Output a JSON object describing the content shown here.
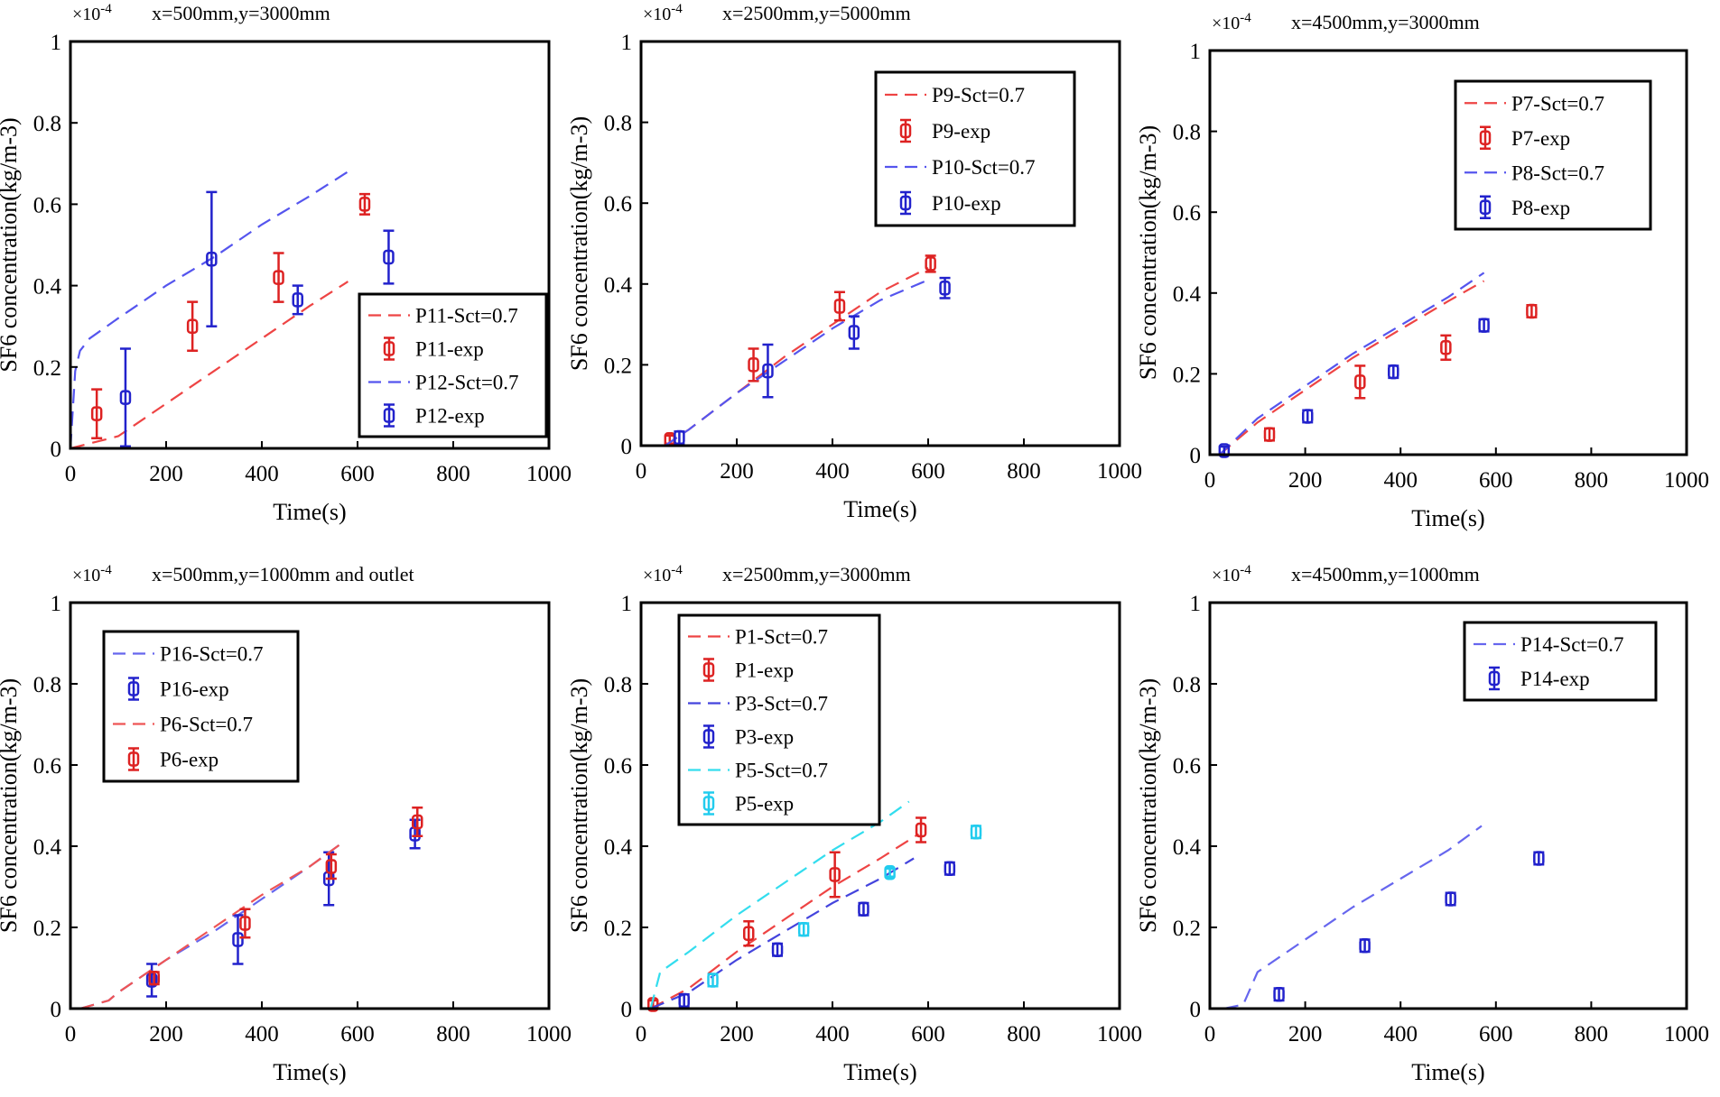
{
  "chart_data": [
    {
      "type": "line",
      "title": "x=500mm,y=3000mm",
      "scale_label": "×10-4",
      "xlabel": "Time(s)",
      "ylabel": "SF6 concentration(kg/m-3)",
      "xlim": [
        0,
        1000
      ],
      "ylim": [
        0,
        1
      ],
      "xticks": [
        "0",
        "200",
        "400",
        "600",
        "800",
        "1000"
      ],
      "yticks": [
        "0",
        "0.2",
        "0.4",
        "0.6",
        "0.8",
        "1"
      ],
      "legend_position": "bottom-right",
      "series": [
        {
          "name": "P11-Sct=0.7",
          "kind": "line",
          "color": "#ee4444",
          "x": [
            0,
            100,
            200,
            300,
            400,
            500,
            580
          ],
          "y": [
            0,
            0.03,
            0.11,
            0.19,
            0.27,
            0.35,
            0.41
          ]
        },
        {
          "name": "P11-exp",
          "kind": "point",
          "color": "#dd2222",
          "x": [
            55,
            255,
            435,
            615
          ],
          "y": [
            0.085,
            0.3,
            0.42,
            0.6
          ],
          "err": [
            0.06,
            0.06,
            0.06,
            0.025
          ]
        },
        {
          "name": "P12-Sct=0.7",
          "kind": "line",
          "color": "#5555ee",
          "x": [
            0,
            10,
            20,
            40,
            100,
            200,
            300,
            400,
            500,
            580
          ],
          "y": [
            0,
            0.19,
            0.24,
            0.27,
            0.32,
            0.4,
            0.47,
            0.55,
            0.62,
            0.68
          ]
        },
        {
          "name": "P12-exp",
          "kind": "point",
          "color": "#2222cc",
          "x": [
            115,
            295,
            475,
            665
          ],
          "y": [
            0.125,
            0.465,
            0.365,
            0.47
          ],
          "err": [
            0.12,
            0.165,
            0.035,
            0.065
          ]
        }
      ]
    },
    {
      "type": "line",
      "title": "x=2500mm,y=5000mm",
      "scale_label": "×10-4",
      "xlabel": "Time(s)",
      "ylabel": "SF6 concentration(kg/m-3)",
      "xlim": [
        0,
        1000
      ],
      "ylim": [
        0,
        1
      ],
      "xticks": [
        "0",
        "200",
        "400",
        "600",
        "800",
        "1000"
      ],
      "yticks": [
        "0",
        "0.2",
        "0.4",
        "0.6",
        "0.8",
        "1"
      ],
      "legend_position": "top-right",
      "series": [
        {
          "name": "P9-Sct=0.7",
          "kind": "line",
          "color": "#ee4444",
          "x": [
            50,
            100,
            200,
            300,
            400,
            500,
            600
          ],
          "y": [
            0,
            0.04,
            0.13,
            0.22,
            0.3,
            0.38,
            0.44
          ]
        },
        {
          "name": "P9-exp",
          "kind": "point",
          "color": "#dd2222",
          "x": [
            60,
            235,
            415,
            605
          ],
          "y": [
            0.015,
            0.2,
            0.345,
            0.45
          ],
          "err": [
            0.01,
            0.04,
            0.035,
            0.02
          ]
        },
        {
          "name": "P10-Sct=0.7",
          "kind": "line",
          "color": "#5555ee",
          "x": [
            50,
            100,
            200,
            300,
            400,
            500,
            600
          ],
          "y": [
            0,
            0.04,
            0.13,
            0.21,
            0.29,
            0.36,
            0.41
          ]
        },
        {
          "name": "P10-exp",
          "kind": "point",
          "color": "#2222cc",
          "x": [
            80,
            265,
            445,
            635
          ],
          "y": [
            0.02,
            0.185,
            0.28,
            0.39
          ],
          "err": [
            0.015,
            0.065,
            0.04,
            0.025
          ]
        }
      ]
    },
    {
      "type": "line",
      "title": "x=4500mm,y=3000mm",
      "scale_label": "×10-4",
      "xlabel": "Time(s)",
      "ylabel": "SF6 concentration(kg/m-3)",
      "xlim": [
        0,
        1000
      ],
      "ylim": [
        0,
        1
      ],
      "xticks": [
        "0",
        "200",
        "400",
        "600",
        "800",
        "1000"
      ],
      "yticks": [
        "0",
        "0.2",
        "0.4",
        "0.6",
        "0.8",
        "1"
      ],
      "legend_position": "top-right",
      "series": [
        {
          "name": "P7-Sct=0.7",
          "kind": "line",
          "color": "#ee4444",
          "x": [
            20,
            100,
            200,
            300,
            400,
            500,
            575
          ],
          "y": [
            0,
            0.08,
            0.16,
            0.24,
            0.31,
            0.38,
            0.43
          ]
        },
        {
          "name": "P7-exp",
          "kind": "point",
          "color": "#dd2222",
          "x": [
            125,
            315,
            495,
            675
          ],
          "y": [
            0.05,
            0.18,
            0.265,
            0.355
          ],
          "err": [
            0.015,
            0.04,
            0.03,
            0.015
          ]
        },
        {
          "name": "P8-Sct=0.7",
          "kind": "line",
          "color": "#5555ee",
          "x": [
            20,
            100,
            200,
            300,
            400,
            500,
            575
          ],
          "y": [
            0,
            0.09,
            0.17,
            0.25,
            0.32,
            0.39,
            0.45
          ]
        },
        {
          "name": "P8-exp",
          "kind": "point",
          "color": "#2222cc",
          "x": [
            30,
            205,
            385,
            575
          ],
          "y": [
            0.01,
            0.095,
            0.205,
            0.32
          ],
          "err": [
            0.01,
            0.015,
            0.015,
            0.015
          ]
        }
      ]
    },
    {
      "type": "line",
      "title": "x=500mm,y=1000mm and outlet",
      "scale_label": "×10-4",
      "xlabel": "Time(s)",
      "ylabel": "SF6 concentration(kg/m-3)",
      "xlim": [
        0,
        1000
      ],
      "ylim": [
        0,
        1
      ],
      "xticks": [
        "0",
        "200",
        "400",
        "600",
        "800",
        "1000"
      ],
      "yticks": [
        "0",
        "0.2",
        "0.4",
        "0.6",
        "0.8",
        "1"
      ],
      "legend_position": "top-left",
      "series": [
        {
          "name": "P16-Sct=0.7",
          "kind": "line",
          "color": "#6666ee",
          "x": [
            20,
            80,
            100,
            200,
            300,
            400,
            500,
            570
          ],
          "y": [
            0,
            0.02,
            0.04,
            0.12,
            0.19,
            0.27,
            0.35,
            0.41
          ]
        },
        {
          "name": "P16-exp",
          "kind": "point",
          "color": "#2222cc",
          "x": [
            170,
            350,
            540,
            720
          ],
          "y": [
            0.07,
            0.17,
            0.32,
            0.43
          ],
          "err": [
            0.04,
            0.06,
            0.065,
            0.035
          ]
        },
        {
          "name": "P6-Sct=0.7",
          "kind": "line",
          "color": "#ee5555",
          "x": [
            20,
            80,
            100,
            200,
            300,
            400,
            500,
            570
          ],
          "y": [
            0,
            0.02,
            0.04,
            0.12,
            0.2,
            0.28,
            0.35,
            0.41
          ]
        },
        {
          "name": "P6-exp",
          "kind": "point",
          "color": "#dd2222",
          "x": [
            175,
            365,
            545,
            725
          ],
          "y": [
            0.075,
            0.21,
            0.35,
            0.46
          ],
          "err": [
            0.015,
            0.035,
            0.03,
            0.035
          ]
        }
      ]
    },
    {
      "type": "line",
      "title": "x=2500mm,y=3000mm",
      "scale_label": "×10-4",
      "xlabel": "Time(s)",
      "ylabel": "SF6 concentration(kg/m-3)",
      "xlim": [
        0,
        1000
      ],
      "ylim": [
        0,
        1
      ],
      "xticks": [
        "0",
        "200",
        "400",
        "600",
        "800",
        "1000"
      ],
      "yticks": [
        "0",
        "0.2",
        "0.4",
        "0.6",
        "0.8",
        "1"
      ],
      "legend_position": "top-left",
      "series": [
        {
          "name": "P1-Sct=0.7",
          "kind": "line",
          "color": "#ee4444",
          "x": [
            20,
            100,
            200,
            300,
            400,
            500,
            580
          ],
          "y": [
            0,
            0.05,
            0.14,
            0.22,
            0.3,
            0.37,
            0.43
          ]
        },
        {
          "name": "P1-exp",
          "kind": "point",
          "color": "#dd2222",
          "x": [
            25,
            225,
            405,
            585
          ],
          "y": [
            0.01,
            0.185,
            0.33,
            0.44
          ],
          "err": [
            0.01,
            0.03,
            0.055,
            0.03
          ]
        },
        {
          "name": "P3-Sct=0.7",
          "kind": "line",
          "color": "#4444dd",
          "x": [
            20,
            100,
            200,
            300,
            400,
            500,
            570
          ],
          "y": [
            0,
            0.04,
            0.12,
            0.19,
            0.26,
            0.32,
            0.37
          ]
        },
        {
          "name": "P3-exp",
          "kind": "point",
          "color": "#2222cc",
          "x": [
            90,
            285,
            465,
            645
          ],
          "y": [
            0.02,
            0.145,
            0.245,
            0.345
          ],
          "err": [
            0.015,
            0.015,
            0.015,
            0.015
          ]
        },
        {
          "name": "P5-Sct=0.7",
          "kind": "line",
          "color": "#33ddee",
          "x": [
            20,
            40,
            100,
            200,
            300,
            400,
            500,
            560
          ],
          "y": [
            0,
            0.09,
            0.14,
            0.23,
            0.31,
            0.39,
            0.46,
            0.51
          ]
        },
        {
          "name": "P5-exp",
          "kind": "point",
          "color": "#22ccee",
          "x": [
            150,
            340,
            520,
            700
          ],
          "y": [
            0.07,
            0.195,
            0.335,
            0.435
          ],
          "err": [
            0.015,
            0.015,
            0.01,
            0.015
          ]
        }
      ]
    },
    {
      "type": "line",
      "title": "x=4500mm,y=1000mm",
      "scale_label": "×10-4",
      "xlabel": "Time(s)",
      "ylabel": "SF6 concentration(kg/m-3)",
      "xlim": [
        0,
        1000
      ],
      "ylim": [
        0,
        1
      ],
      "xticks": [
        "0",
        "200",
        "400",
        "600",
        "800",
        "1000"
      ],
      "yticks": [
        "0",
        "0.2",
        "0.4",
        "0.6",
        "0.8",
        "1"
      ],
      "legend_position": "top-right",
      "series": [
        {
          "name": "P14-Sct=0.7",
          "kind": "line",
          "color": "#6666ee",
          "x": [
            30,
            70,
            100,
            200,
            300,
            400,
            500,
            570
          ],
          "y": [
            0,
            0.01,
            0.09,
            0.17,
            0.25,
            0.32,
            0.39,
            0.45
          ]
        },
        {
          "name": "P14-exp",
          "kind": "point",
          "color": "#2222cc",
          "x": [
            145,
            325,
            505,
            690
          ],
          "y": [
            0.035,
            0.155,
            0.27,
            0.37
          ],
          "err": [
            0.015,
            0.015,
            0.015,
            0.015
          ]
        }
      ]
    }
  ]
}
